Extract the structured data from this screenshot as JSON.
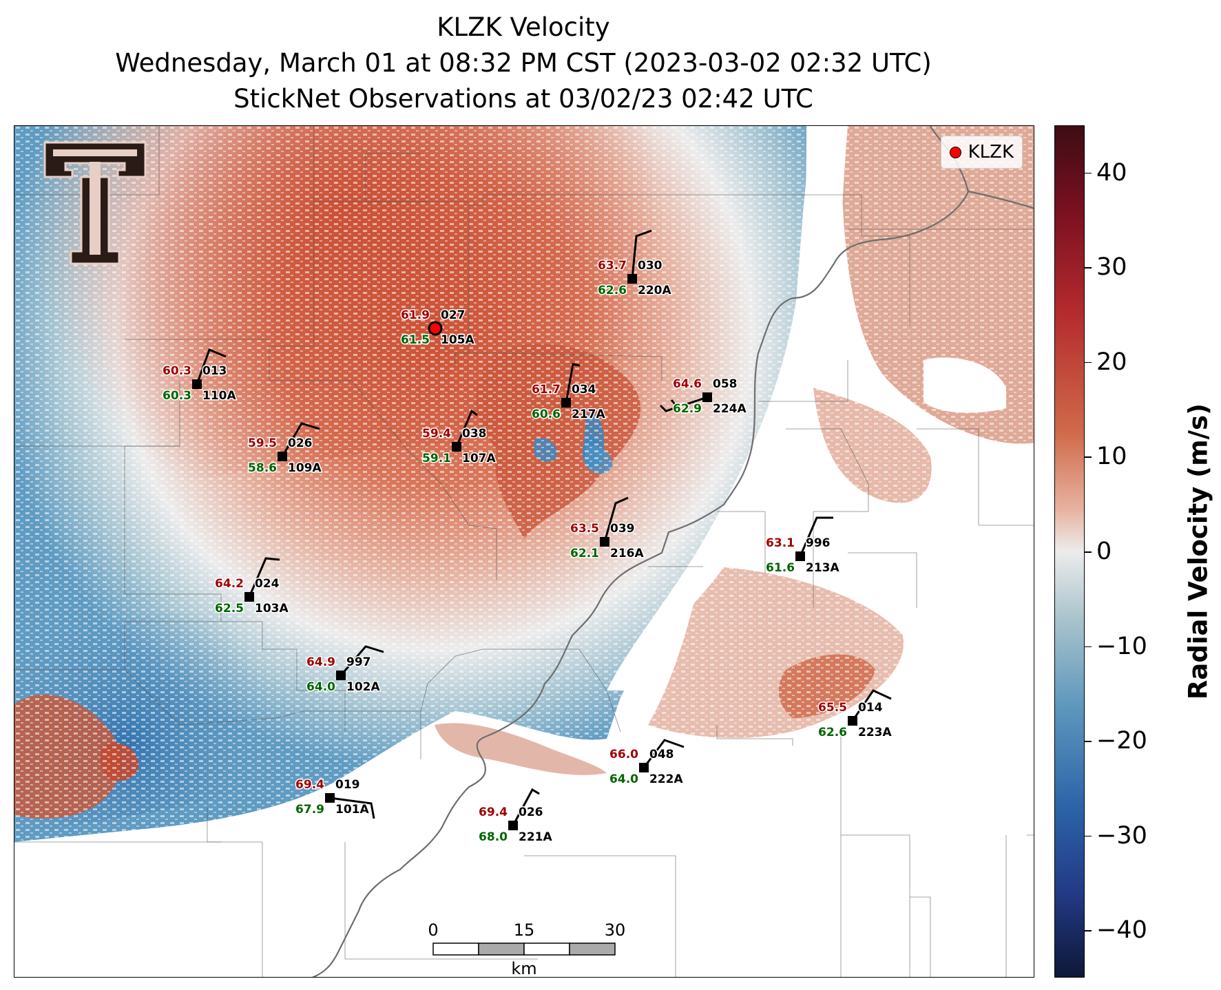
{
  "title": {
    "line1": "KLZK Velocity",
    "line2": "Wednesday, March 01 at 08:32 PM CST (2023-03-02 02:32 UTC)",
    "line3": "StickNet Observations at 03/02/23 02:42 UTC"
  },
  "legend": {
    "label": "KLZK",
    "marker_color": "#ff0000"
  },
  "colorbar": {
    "title": "Radial Velocity (m/s)",
    "ticks": [
      "40",
      "30",
      "20",
      "10",
      "0",
      "−10",
      "−20",
      "−30",
      "−40"
    ],
    "range": [
      -45,
      45
    ]
  },
  "scale_bar": {
    "ticks": [
      "0",
      "15",
      "30"
    ],
    "unit": "km"
  },
  "colors": {
    "temperature": "#a00000",
    "dewpoint": "#006400",
    "station": "#000000"
  },
  "stations": [
    {
      "id": "027",
      "temp": "61.9",
      "dew": "61.5",
      "name": "105A"
    },
    {
      "id": "030",
      "temp": "63.7",
      "dew": "62.6",
      "name": "220A"
    },
    {
      "id": "013",
      "temp": "60.3",
      "dew": "60.3",
      "name": "110A"
    },
    {
      "id": "034",
      "temp": "61.7",
      "dew": "60.6",
      "name": "217A"
    },
    {
      "id": "058",
      "temp": "64.6",
      "dew": "62.9",
      "name": "224A"
    },
    {
      "id": "026",
      "temp": "59.5",
      "dew": "58.6",
      "name": "109A"
    },
    {
      "id": "038",
      "temp": "59.4",
      "dew": "59.1",
      "name": "107A"
    },
    {
      "id": "039",
      "temp": "63.5",
      "dew": "62.1",
      "name": "216A"
    },
    {
      "id": "996",
      "temp": "63.1",
      "dew": "61.6",
      "name": "213A"
    },
    {
      "id": "024",
      "temp": "64.2",
      "dew": "62.5",
      "name": "103A"
    },
    {
      "id": "997",
      "temp": "64.9",
      "dew": "64.0",
      "name": "102A"
    },
    {
      "id": "014",
      "temp": "65.5",
      "dew": "62.6",
      "name": "223A"
    },
    {
      "id": "048",
      "temp": "66.0",
      "dew": "64.0",
      "name": "222A"
    },
    {
      "id": "019",
      "temp": "69.4",
      "dew": "67.9",
      "name": "101A"
    },
    {
      "id": "026",
      "temp": "69.4",
      "dew": "68.0",
      "name": "221A"
    }
  ]
}
